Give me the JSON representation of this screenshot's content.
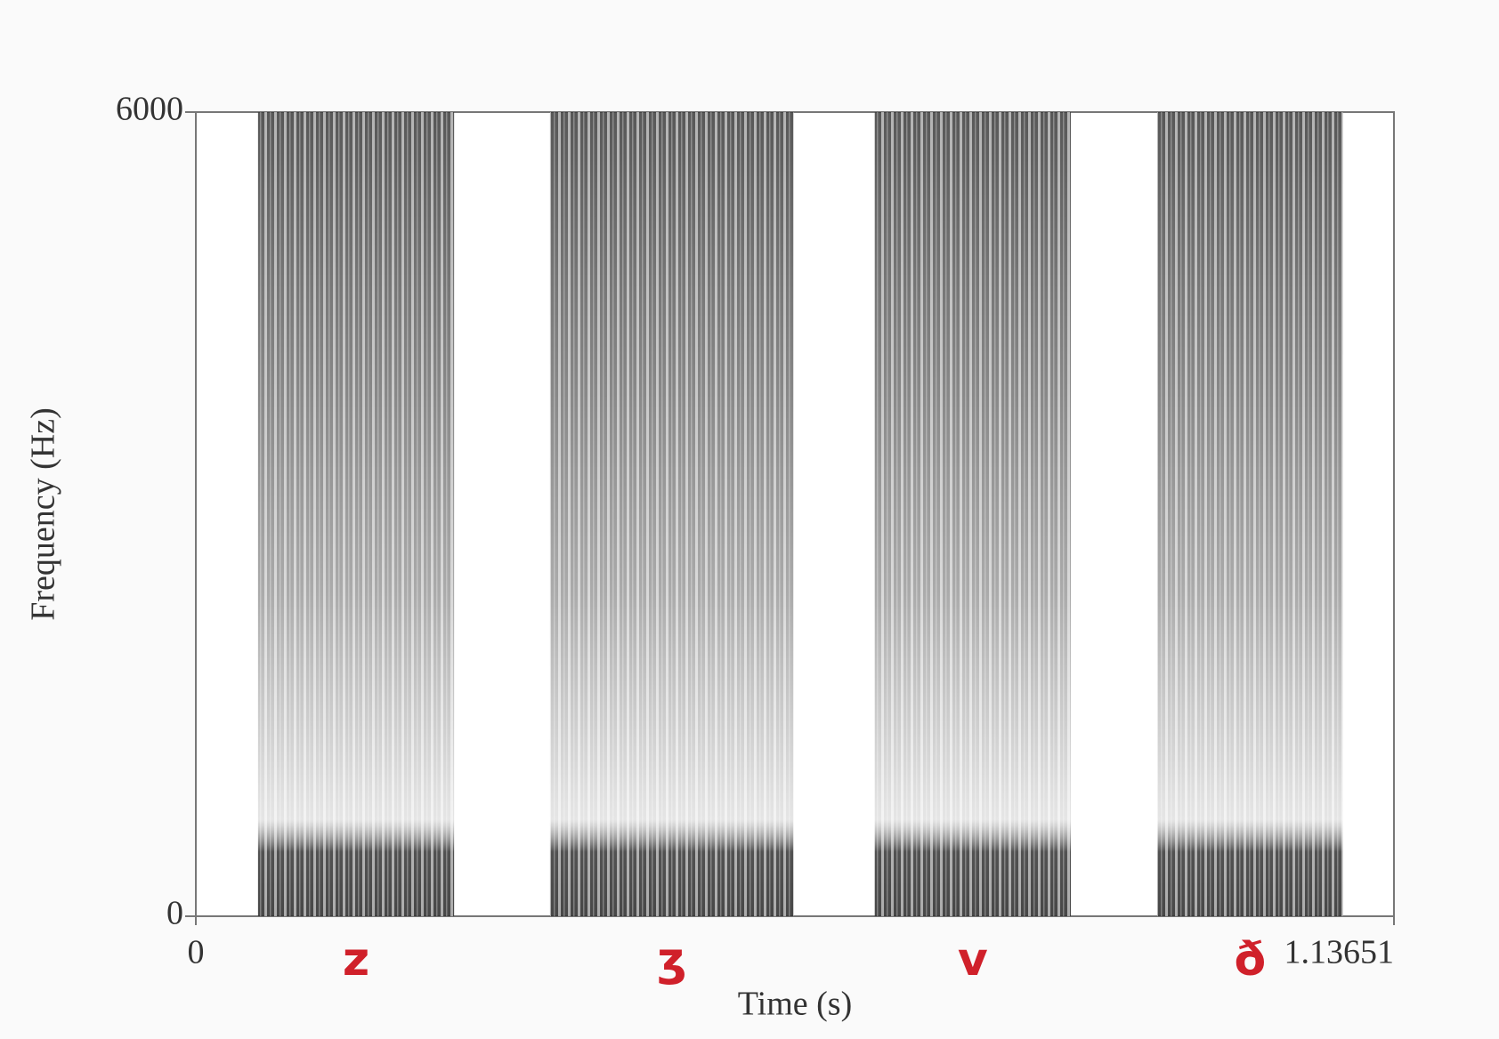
{
  "chart_data": {
    "type": "spectrogram",
    "x_label": "Time (s)",
    "y_label": "Frequency (Hz)",
    "xlim": [
      0,
      1.13651
    ],
    "ylim": [
      0,
      6000
    ],
    "xticks": [
      0,
      1.13651
    ],
    "yticks": [
      0,
      6000
    ],
    "segments": [
      {
        "label": "z",
        "start": 0.059,
        "end": 0.245
      },
      {
        "label": "ʒ",
        "start": 0.336,
        "end": 0.567
      },
      {
        "label": "v",
        "start": 0.644,
        "end": 0.83
      },
      {
        "label": "ð",
        "start": 0.912,
        "end": 1.088
      }
    ],
    "label_color": "#d0202a"
  }
}
